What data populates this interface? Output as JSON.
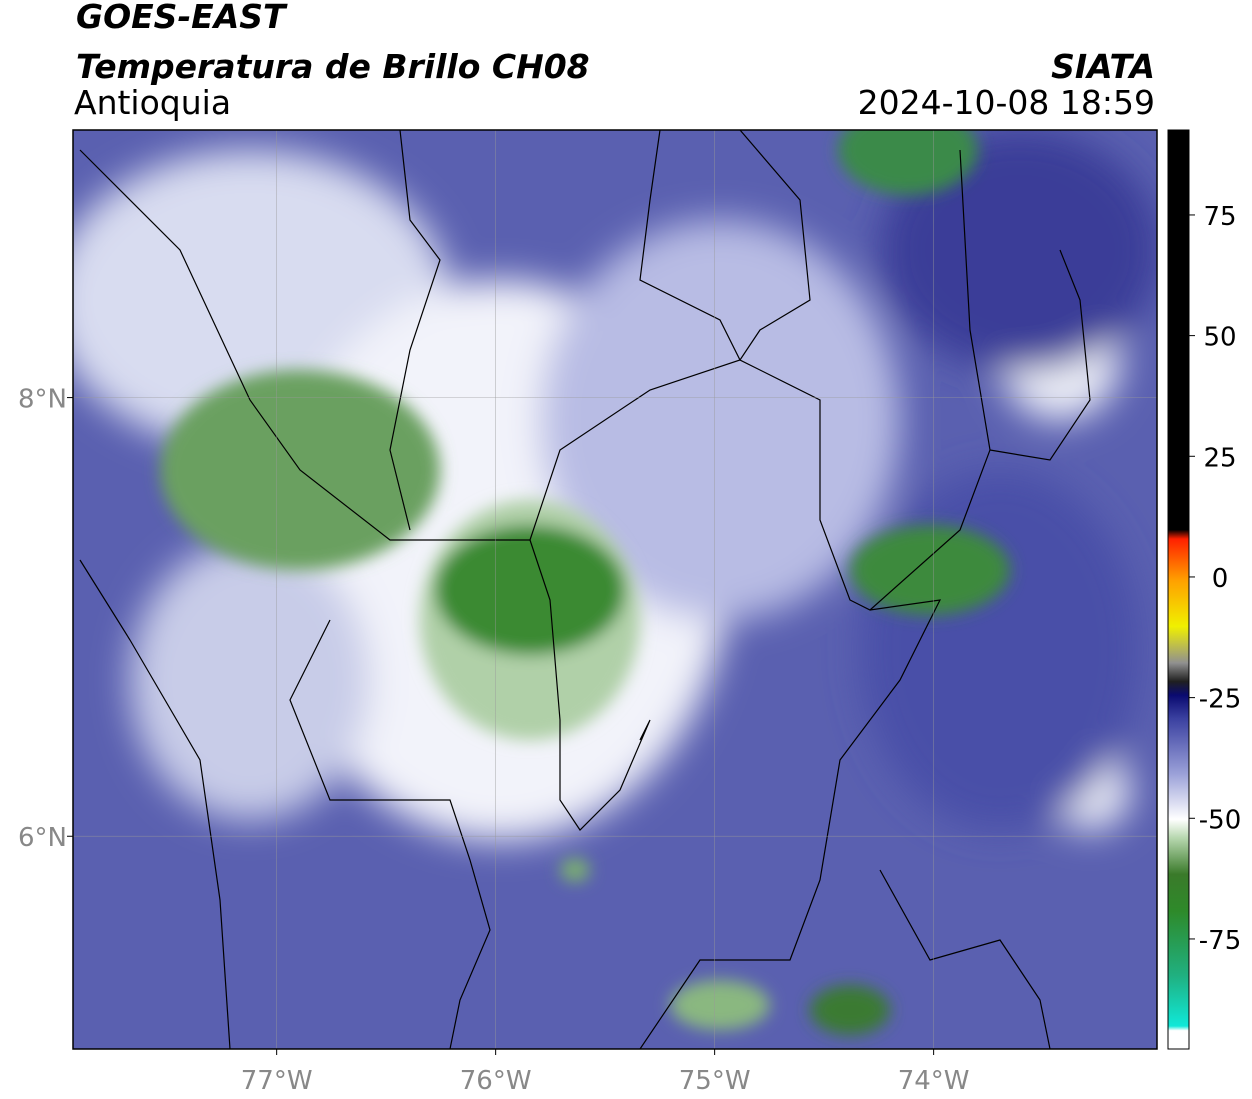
{
  "header": {
    "source": "GOES-EAST",
    "title": "Temperatura de Brillo CH08",
    "region": "Antioquia",
    "agency": "SIATA",
    "timestamp": "2024-10-08 18:59"
  },
  "map": {
    "xlim": [
      -77.93,
      -72.98
    ],
    "ylim": [
      5.03,
      9.22
    ],
    "xticks": [
      {
        "value": -77,
        "label": "77°W"
      },
      {
        "value": -76,
        "label": "76°W"
      },
      {
        "value": -75,
        "label": "75°W"
      },
      {
        "value": -74,
        "label": "74°W"
      }
    ],
    "yticks": [
      {
        "value": 6,
        "label": "6°N"
      },
      {
        "value": 8,
        "label": "8°N"
      }
    ],
    "grid": true
  },
  "colorbar": {
    "lim": [
      -97.8,
      92.6
    ],
    "ticks": [
      -75,
      -50,
      -25,
      0,
      25,
      50,
      75
    ]
  }
}
